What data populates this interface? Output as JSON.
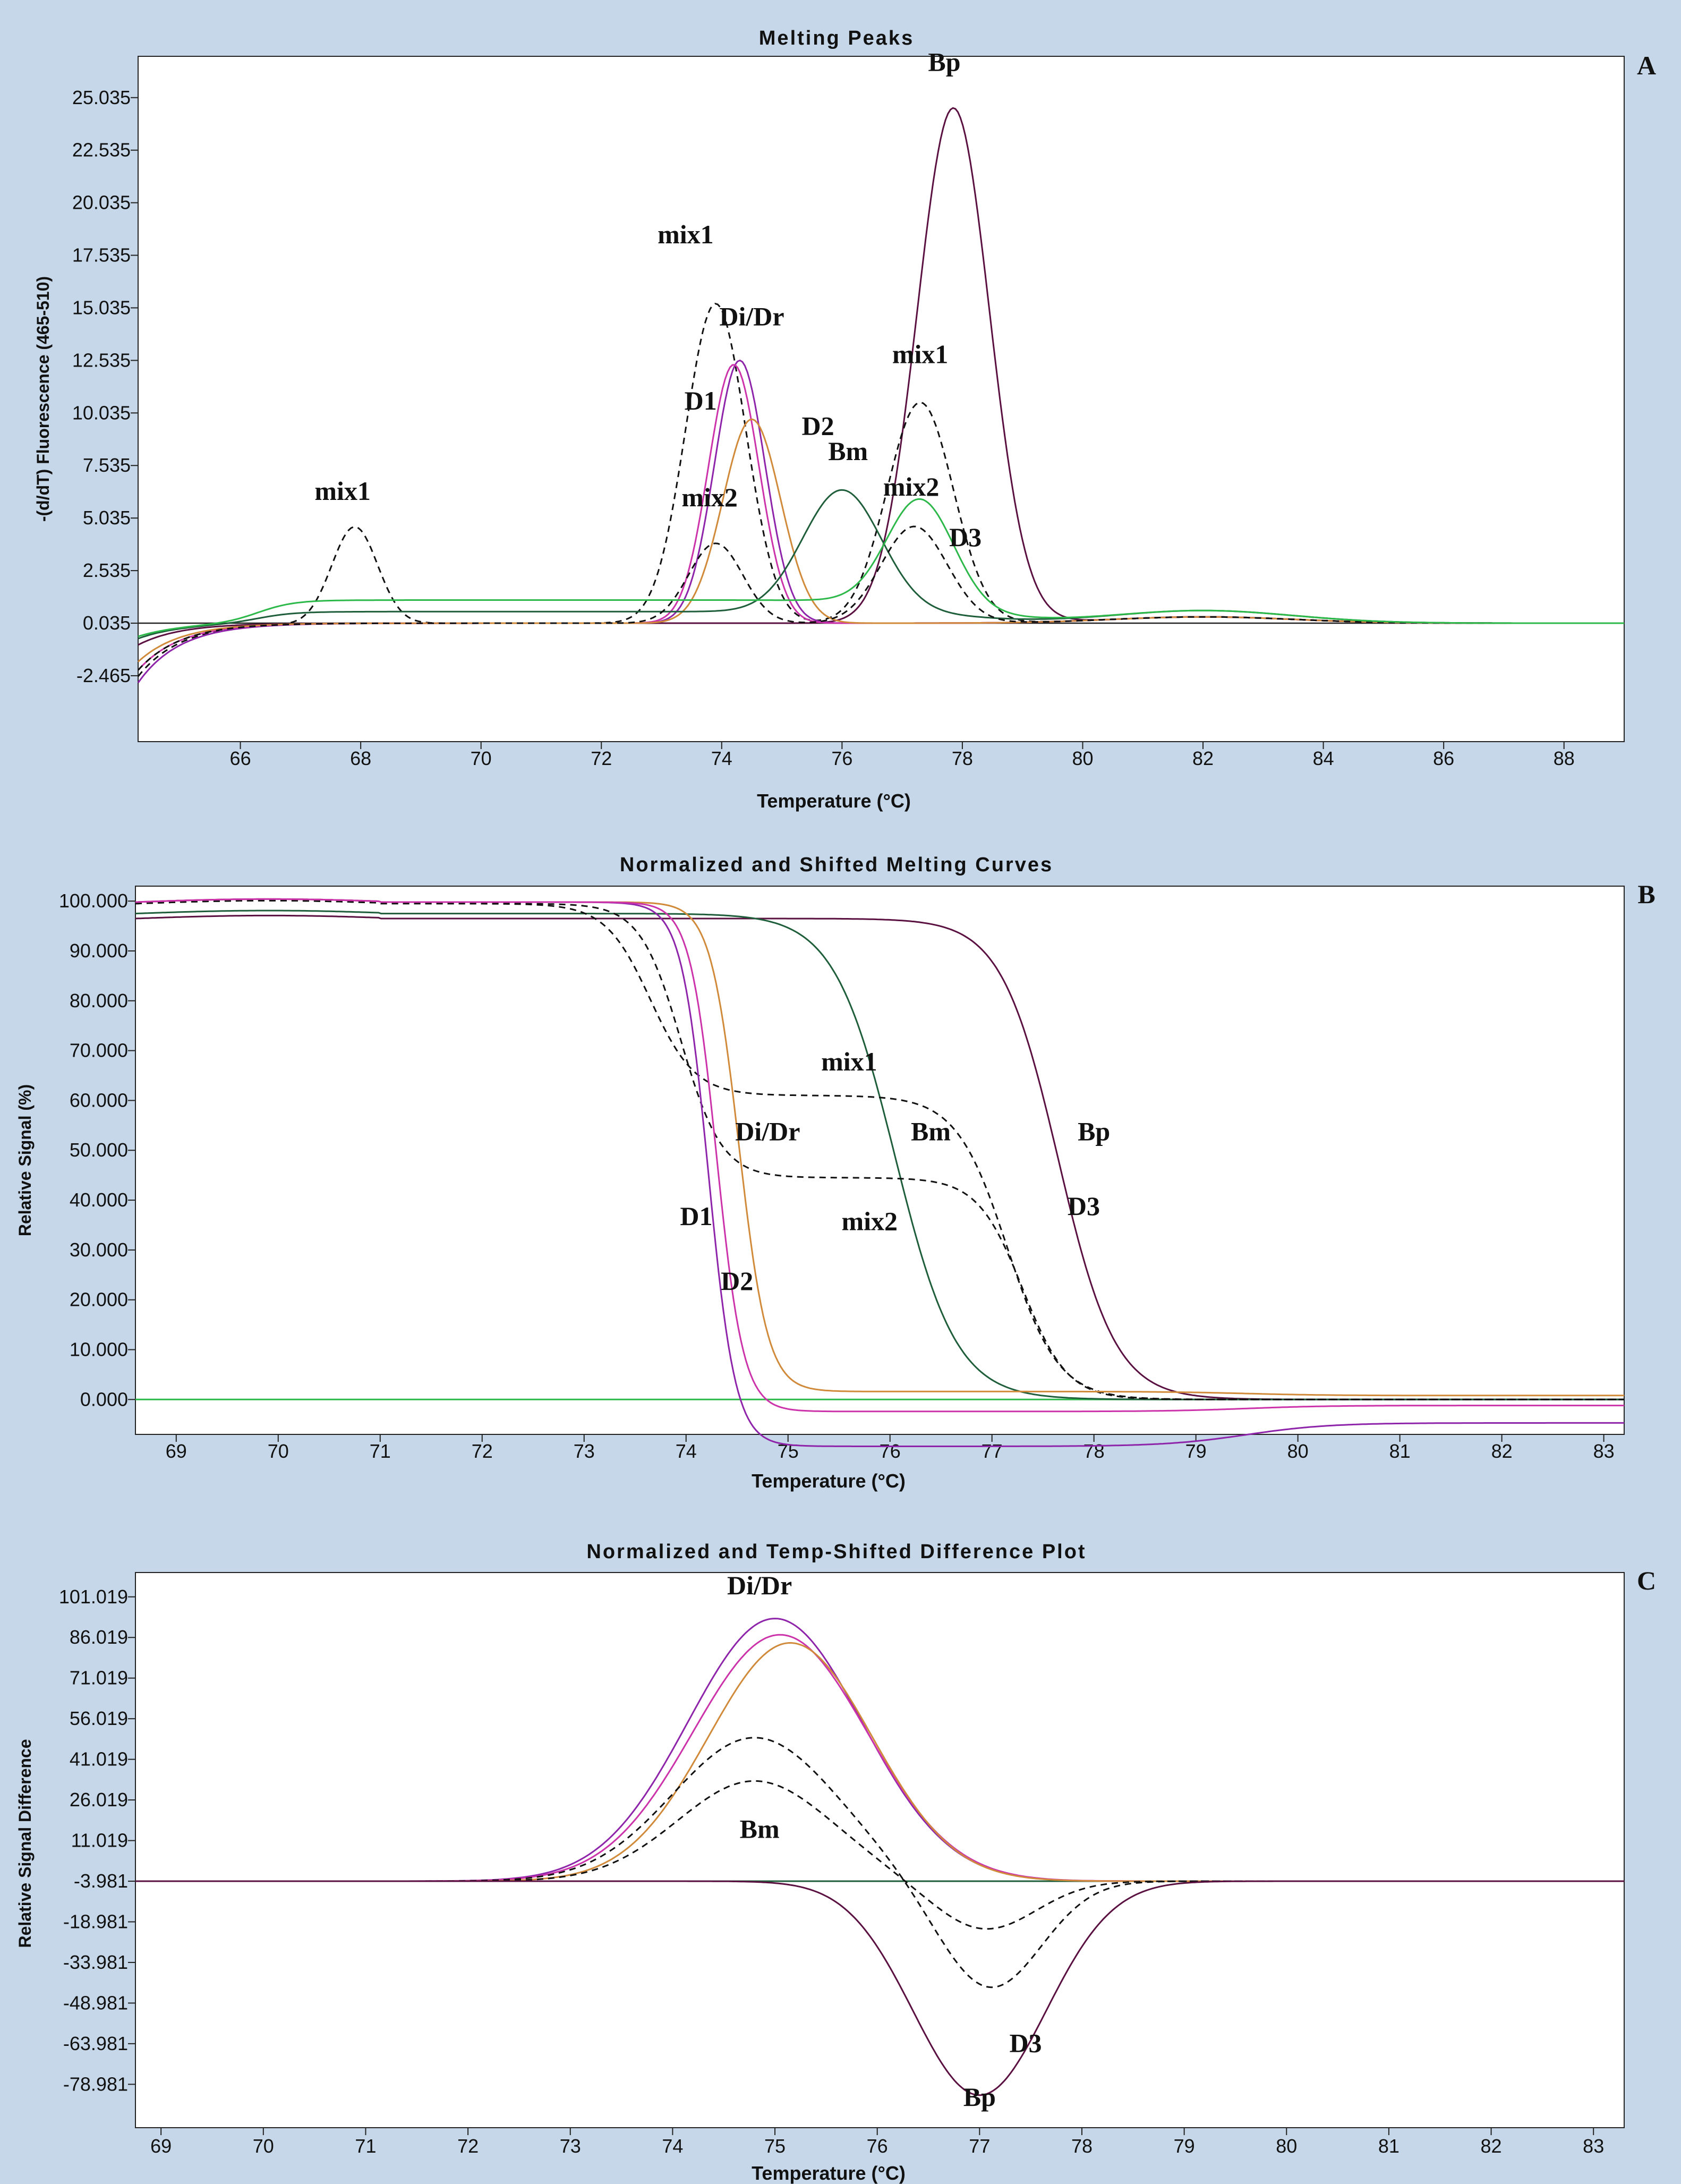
{
  "chart_data": [
    {
      "type": "line",
      "panel": "A",
      "title": "Melting Peaks",
      "xlabel": "Temperature (°C)",
      "ylabel": "-(d/dT) Fluorescence (465-510)",
      "xlim": [
        64.3,
        89
      ],
      "ylim": [
        -5.6,
        27
      ],
      "xticks": [
        66,
        68,
        70,
        72,
        74,
        76,
        78,
        80,
        82,
        84,
        86,
        88
      ],
      "yticks": [
        -2.465,
        0.035,
        2.535,
        5.035,
        7.535,
        10.035,
        12.535,
        15.035,
        17.535,
        20.035,
        22.535,
        25.035
      ],
      "ytick_labels": [
        "-2.465",
        "0.035",
        "2.535",
        "5.035",
        "7.535",
        "10.035",
        "12.535",
        "15.035",
        "17.535",
        "20.035",
        "22.535",
        "25.035"
      ],
      "baseline": 0.035,
      "series": [
        {
          "name": "Bp",
          "color": "#5a1040",
          "dash": false,
          "start": -1.0,
          "peaks": [
            {
              "c": 77.85,
              "h": 24.5,
              "w": 0.6
            }
          ]
        },
        {
          "name": "mix1",
          "color": "#111111",
          "dash": true,
          "start": -2.5,
          "peaks": [
            {
              "c": 67.9,
              "h": 4.6,
              "w": 0.38
            },
            {
              "c": 73.9,
              "h": 15.2,
              "w": 0.5
            },
            {
              "c": 77.3,
              "h": 10.5,
              "w": 0.55
            }
          ]
        },
        {
          "name": "Di/Dr",
          "color": "#8e24aa",
          "dash": false,
          "start": -2.8,
          "peaks": [
            {
              "c": 74.3,
              "h": 12.5,
              "w": 0.42
            }
          ]
        },
        {
          "name": "D1",
          "color": "#cc33aa",
          "dash": false,
          "start": -2.2,
          "peaks": [
            {
              "c": 74.2,
              "h": 12.3,
              "w": 0.42
            }
          ]
        },
        {
          "name": "D2",
          "color": "#d08a3a",
          "dash": false,
          "start": -1.8,
          "peaks": [
            {
              "c": 74.5,
              "h": 9.7,
              "w": 0.48
            }
          ]
        },
        {
          "name": "Bm",
          "color": "#1f5e3a",
          "dash": false,
          "start": -0.7,
          "peaks": [
            {
              "c": 76.0,
              "h": 5.8,
              "w": 0.65
            }
          ]
        },
        {
          "name": "mix2",
          "color": "#111111",
          "dash": true,
          "start": -2.2,
          "peaks": [
            {
              "c": 73.9,
              "h": 3.8,
              "w": 0.45
            },
            {
              "c": 77.2,
              "h": 4.6,
              "w": 0.55
            }
          ]
        },
        {
          "name": "D3",
          "color": "#2db84a",
          "dash": false,
          "start": -0.6,
          "peaks": [
            {
              "c": 77.3,
              "h": 5.0,
              "w": 0.55
            }
          ]
        }
      ],
      "annotations": [
        {
          "text": "Bp",
          "x": 77.7,
          "y": 26.3
        },
        {
          "text": "mix1",
          "x": 73.4,
          "y": 18.1
        },
        {
          "text": "Di/Dr",
          "x": 74.5,
          "y": 14.2
        },
        {
          "text": "mix1",
          "x": 77.3,
          "y": 12.4
        },
        {
          "text": "D1",
          "x": 73.65,
          "y": 10.2
        },
        {
          "text": "D2",
          "x": 75.6,
          "y": 9.0
        },
        {
          "text": "Bm",
          "x": 76.1,
          "y": 7.8
        },
        {
          "text": "mix1",
          "x": 67.7,
          "y": 5.9
        },
        {
          "text": "mix2",
          "x": 73.8,
          "y": 5.6
        },
        {
          "text": "mix2",
          "x": 77.15,
          "y": 6.1
        },
        {
          "text": "D3",
          "x": 78.05,
          "y": 3.7
        }
      ]
    },
    {
      "type": "line",
      "panel": "B",
      "title": "Normalized and Shifted Melting Curves",
      "xlabel": "Temperature (°C)",
      "ylabel": "Relative Signal (%)",
      "xlim": [
        68.6,
        83.2
      ],
      "ylim": [
        -7,
        103
      ],
      "xticks": [
        69,
        70,
        71,
        72,
        73,
        74,
        75,
        76,
        77,
        78,
        79,
        80,
        81,
        82,
        83
      ],
      "yticks": [
        0,
        10,
        20,
        30,
        40,
        50,
        60,
        70,
        80,
        90,
        100
      ],
      "ytick_labels": [
        "0.000",
        "10.000",
        "20.000",
        "30.000",
        "40.000",
        "50.000",
        "60.000",
        "70.000",
        "80.000",
        "90.000",
        "100.000"
      ],
      "series": [
        {
          "name": "D3",
          "color": "#2db84a",
          "dash": false,
          "flat": 0
        },
        {
          "name": "Bp",
          "color": "#5a1040",
          "dash": false,
          "plateau": 96.5,
          "transitions": [
            {
              "mid": 77.65,
              "amp": 96.5,
              "k": 0.28
            }
          ],
          "tail": 0
        },
        {
          "name": "Bm",
          "color": "#1f5e3a",
          "dash": false,
          "plateau": 97.5,
          "transitions": [
            {
              "mid": 76.05,
              "amp": 97.5,
              "k": 0.3
            }
          ],
          "tail": 0
        },
        {
          "name": "mix1",
          "color": "#111111",
          "dash": true,
          "plateau": 99.5,
          "transitions": [
            {
              "mid": 73.65,
              "amp": 38.5,
              "k": 0.22
            },
            {
              "mid": 77.15,
              "amp": 61,
              "k": 0.25
            }
          ],
          "tail": 0
        },
        {
          "name": "mix2",
          "color": "#111111",
          "dash": true,
          "plateau": 99.5,
          "transitions": [
            {
              "mid": 73.95,
              "amp": 55,
              "k": 0.2
            },
            {
              "mid": 77.3,
              "amp": 44.5,
              "k": 0.22
            }
          ],
          "tail": 0
        },
        {
          "name": "D2",
          "color": "#d08a3a",
          "dash": false,
          "plateau": 99.8,
          "transitions": [
            {
              "mid": 74.52,
              "amp": 99,
              "k": 0.14
            }
          ],
          "tail": 0.8
        },
        {
          "name": "Di/Dr",
          "color": "#8e24aa",
          "dash": false,
          "plateau": 99.8,
          "transitions": [
            {
              "mid": 74.22,
              "amp": 104.5,
              "k": 0.13
            }
          ],
          "tail": -4.7
        },
        {
          "name": "D1",
          "color": "#cc33aa",
          "dash": false,
          "plateau": 99.8,
          "transitions": [
            {
              "mid": 74.3,
              "amp": 101,
              "k": 0.13
            }
          ],
          "tail": -1.2
        }
      ],
      "annotations": [
        {
          "text": "mix1",
          "x": 75.6,
          "y": 66
        },
        {
          "text": "Di/Dr",
          "x": 74.8,
          "y": 52
        },
        {
          "text": "Bm",
          "x": 76.4,
          "y": 52
        },
        {
          "text": "Bp",
          "x": 78.0,
          "y": 52
        },
        {
          "text": "D3",
          "x": 77.9,
          "y": 37
        },
        {
          "text": "D1",
          "x": 74.1,
          "y": 35
        },
        {
          "text": "mix2",
          "x": 75.8,
          "y": 34
        },
        {
          "text": "D2",
          "x": 74.5,
          "y": 22
        }
      ]
    },
    {
      "type": "line",
      "panel": "C",
      "title": "Normalized and Temp-Shifted Difference Plot",
      "xlabel": "Temperature (°C)",
      "ylabel": "Relative Signal Difference",
      "xlim": [
        68.75,
        83.3
      ],
      "ylim": [
        -95,
        110
      ],
      "xticks": [
        69,
        70,
        71,
        72,
        73,
        74,
        75,
        76,
        77,
        78,
        79,
        80,
        81,
        82,
        83
      ],
      "yticks": [
        101.019,
        86.019,
        71.019,
        56.019,
        41.019,
        26.019,
        11.019,
        -3.981,
        -18.981,
        -33.981,
        -48.981,
        -63.981,
        -78.981
      ],
      "ytick_labels": [
        "101.019",
        "86.019",
        "71.019",
        "56.019",
        "41.019",
        "26.019",
        "11.019",
        "-3.981",
        "-18.981",
        "-33.981",
        "-48.981",
        "-63.981",
        "-78.981"
      ],
      "baseline": -3.981,
      "series": [
        {
          "name": "Bm",
          "color": "#1f5e3a",
          "dash": false,
          "peaks": []
        },
        {
          "name": "Di/Dr",
          "color": "#8e24aa",
          "dash": false,
          "peaks": [
            {
              "c": 75.0,
              "h": 97,
              "w": 0.85
            }
          ]
        },
        {
          "name": "D1",
          "color": "#cc33aa",
          "dash": false,
          "peaks": [
            {
              "c": 75.05,
              "h": 91,
              "w": 0.85
            }
          ]
        },
        {
          "name": "D2",
          "color": "#d08a3a",
          "dash": false,
          "peaks": [
            {
              "c": 75.15,
              "h": 88,
              "w": 0.8
            }
          ]
        },
        {
          "name": "mix1",
          "color": "#111111",
          "dash": true,
          "peaks": [
            {
              "c": 74.8,
              "h": 53,
              "w": 0.8
            },
            {
              "c": 77.1,
              "h": -40,
              "w": 0.5
            }
          ]
        },
        {
          "name": "mix2",
          "color": "#111111",
          "dash": true,
          "peaks": [
            {
              "c": 74.8,
              "h": 37,
              "w": 0.75
            },
            {
              "c": 77.05,
              "h": -18,
              "w": 0.5
            }
          ]
        },
        {
          "name": "Bp",
          "color": "#5a1040",
          "dash": false,
          "peaks": [
            {
              "c": 77.0,
              "h": -79,
              "w": 0.65
            }
          ]
        }
      ],
      "annotations": [
        {
          "text": "Di/Dr",
          "x": 74.85,
          "y": 102
        },
        {
          "text": "Bm",
          "x": 74.85,
          "y": 12
        },
        {
          "text": "D3",
          "x": 77.45,
          "y": -67
        },
        {
          "text": "Bp",
          "x": 77.0,
          "y": -87
        }
      ]
    }
  ],
  "panel_letters": [
    "A",
    "B",
    "C"
  ]
}
